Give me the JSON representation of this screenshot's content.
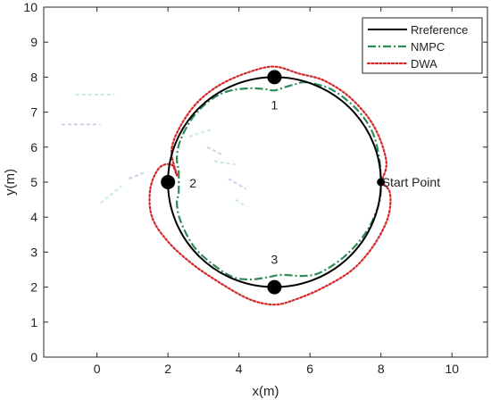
{
  "chart_data": {
    "type": "line",
    "xlabel": "x(m)",
    "ylabel": "y(m)",
    "xlim": [
      -1.5,
      11
    ],
    "ylim": [
      0,
      10
    ],
    "xticks": [
      0,
      2,
      4,
      6,
      8,
      10
    ],
    "yticks": [
      0,
      1,
      2,
      3,
      4,
      5,
      6,
      7,
      8,
      9,
      10
    ],
    "grid": false,
    "legend_position": "top-right",
    "series": [
      {
        "name": "Rreference",
        "style": "solid",
        "color": "#000000",
        "center": [
          5,
          5
        ],
        "radius": 3
      },
      {
        "name": "NMPC",
        "style": "dashdot",
        "color": "#2e8b57",
        "points": [
          [
            8,
            5
          ],
          [
            7.95,
            5.7
          ],
          [
            7.75,
            6.45
          ],
          [
            7.3,
            7.1
          ],
          [
            6.6,
            7.65
          ],
          [
            5.9,
            7.85
          ],
          [
            5.6,
            7.8
          ],
          [
            5.25,
            7.7
          ],
          [
            5.0,
            7.62
          ],
          [
            4.7,
            7.66
          ],
          [
            4.3,
            7.68
          ],
          [
            3.7,
            7.6
          ],
          [
            3.2,
            7.35
          ],
          [
            2.7,
            6.85
          ],
          [
            2.35,
            6.2
          ],
          [
            2.25,
            5.7
          ],
          [
            2.3,
            5.3
          ],
          [
            2.3,
            4.7
          ],
          [
            2.25,
            4.4
          ],
          [
            2.35,
            3.9
          ],
          [
            2.7,
            3.2
          ],
          [
            3.2,
            2.7
          ],
          [
            3.8,
            2.3
          ],
          [
            4.3,
            2.22
          ],
          [
            4.8,
            2.28
          ],
          [
            5.2,
            2.35
          ],
          [
            5.8,
            2.32
          ],
          [
            6.3,
            2.42
          ],
          [
            7.0,
            2.9
          ],
          [
            7.6,
            3.6
          ],
          [
            7.95,
            4.4
          ],
          [
            8,
            5
          ]
        ]
      },
      {
        "name": "DWA",
        "style": "dotted",
        "color": "#d62728",
        "points": [
          [
            8,
            5
          ],
          [
            8.25,
            4.7
          ],
          [
            8.2,
            4.0
          ],
          [
            7.8,
            3.2
          ],
          [
            7.2,
            2.5
          ],
          [
            6.4,
            2.0
          ],
          [
            5.6,
            1.65
          ],
          [
            5.0,
            1.5
          ],
          [
            4.3,
            1.65
          ],
          [
            3.5,
            2.1
          ],
          [
            2.7,
            2.65
          ],
          [
            2.0,
            3.3
          ],
          [
            1.55,
            4.0
          ],
          [
            1.5,
            4.8
          ],
          [
            1.75,
            5.4
          ],
          [
            2.1,
            5.5
          ],
          [
            2.25,
            5.2
          ],
          [
            2.1,
            5.9
          ],
          [
            2.35,
            6.6
          ],
          [
            2.85,
            7.3
          ],
          [
            3.5,
            7.8
          ],
          [
            4.3,
            8.15
          ],
          [
            5.0,
            8.3
          ],
          [
            5.7,
            8.1
          ],
          [
            6.4,
            7.9
          ],
          [
            7.15,
            7.4
          ],
          [
            7.8,
            6.6
          ],
          [
            8.15,
            5.6
          ],
          [
            8,
            5
          ]
        ]
      }
    ],
    "markers": [
      {
        "label": "1",
        "x": 5,
        "y": 8
      },
      {
        "label": "2",
        "x": 2,
        "y": 5
      },
      {
        "label": "3",
        "x": 5,
        "y": 2
      }
    ],
    "start_point": {
      "label": "Start Point",
      "x": 8,
      "y": 5
    }
  }
}
